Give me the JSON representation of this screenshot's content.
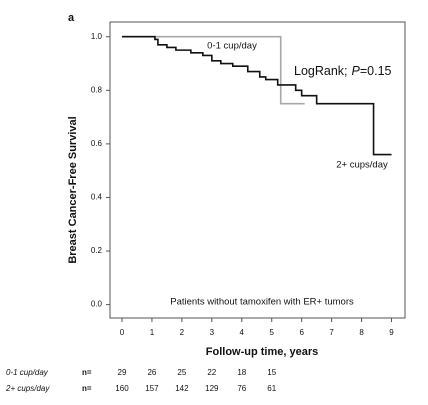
{
  "chart_data": {
    "type": "step",
    "panel_label": "a",
    "x_label": "Follow-up time, years",
    "y_label": "Breast Cancer-Free Survival",
    "xlim": [
      -0.4,
      9.45
    ],
    "ylim": [
      -0.05,
      1.055
    ],
    "xticks": [
      0,
      1,
      2,
      3,
      4,
      5,
      6,
      7,
      8,
      9
    ],
    "yticks": [
      {
        "value": 0,
        "label": "0.0"
      },
      {
        "value": 0.2,
        "label": "0.2"
      },
      {
        "value": 0.4,
        "label": "0.4"
      },
      {
        "value": 0.6,
        "label": "0.6"
      },
      {
        "value": 0.8,
        "label": "0.8"
      },
      {
        "value": 1,
        "label": "1.0"
      }
    ],
    "series": [
      {
        "name": "0-1 cup/day",
        "color": "#a8a8a8",
        "x": [
          0,
          5.3,
          6.1
        ],
        "values": [
          1.0,
          0.75,
          0.75
        ]
      },
      {
        "name": "2+ cups/day",
        "color": "#111111",
        "x": [
          0,
          1.1,
          1.2,
          1.5,
          1.8,
          2.3,
          2.7,
          3.0,
          3.3,
          3.7,
          4.2,
          4.6,
          4.8,
          5.2,
          5.8,
          6.0,
          6.5,
          8.4,
          9.0
        ],
        "values": [
          1.0,
          0.99,
          0.97,
          0.96,
          0.95,
          0.94,
          0.93,
          0.91,
          0.9,
          0.89,
          0.87,
          0.85,
          0.84,
          0.82,
          0.8,
          0.78,
          0.75,
          0.56,
          0.56
        ]
      }
    ],
    "logrank": [
      "LogRank;",
      "P",
      "=0.15"
    ],
    "note": "Patients without tamoxifen with ER+ tumors",
    "risk_table": [
      {
        "label": "0-1 cup/day",
        "n_label": "n=",
        "counts": [
          29,
          26,
          25,
          22,
          18,
          15
        ]
      },
      {
        "label": "2+ cups/day",
        "n_label": "n=",
        "counts": [
          160,
          157,
          142,
          129,
          76,
          61
        ]
      }
    ]
  }
}
